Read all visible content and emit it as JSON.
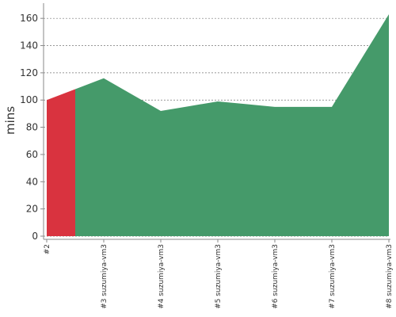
{
  "chart_data": {
    "type": "area",
    "y_label": "mins",
    "categories": [
      "#2",
      "#3 suzumiya-vm3",
      "#4 suzumiya-vm3",
      "#5 suzumiya-vm3",
      "#6 suzumiya-vm3",
      "#7 suzumiya-vm3",
      "#8 suzumiya-vm3"
    ],
    "values": [
      100,
      116,
      92,
      99,
      95,
      95,
      163
    ],
    "colors": [
      "#d9333f",
      "#459a6a",
      "#459a6a",
      "#459a6a",
      "#459a6a",
      "#459a6a",
      "#459a6a"
    ],
    "ylim": [
      0,
      170
    ],
    "yticks": [
      0,
      20,
      40,
      60,
      80,
      100,
      120,
      140,
      160
    ],
    "grid": true
  }
}
